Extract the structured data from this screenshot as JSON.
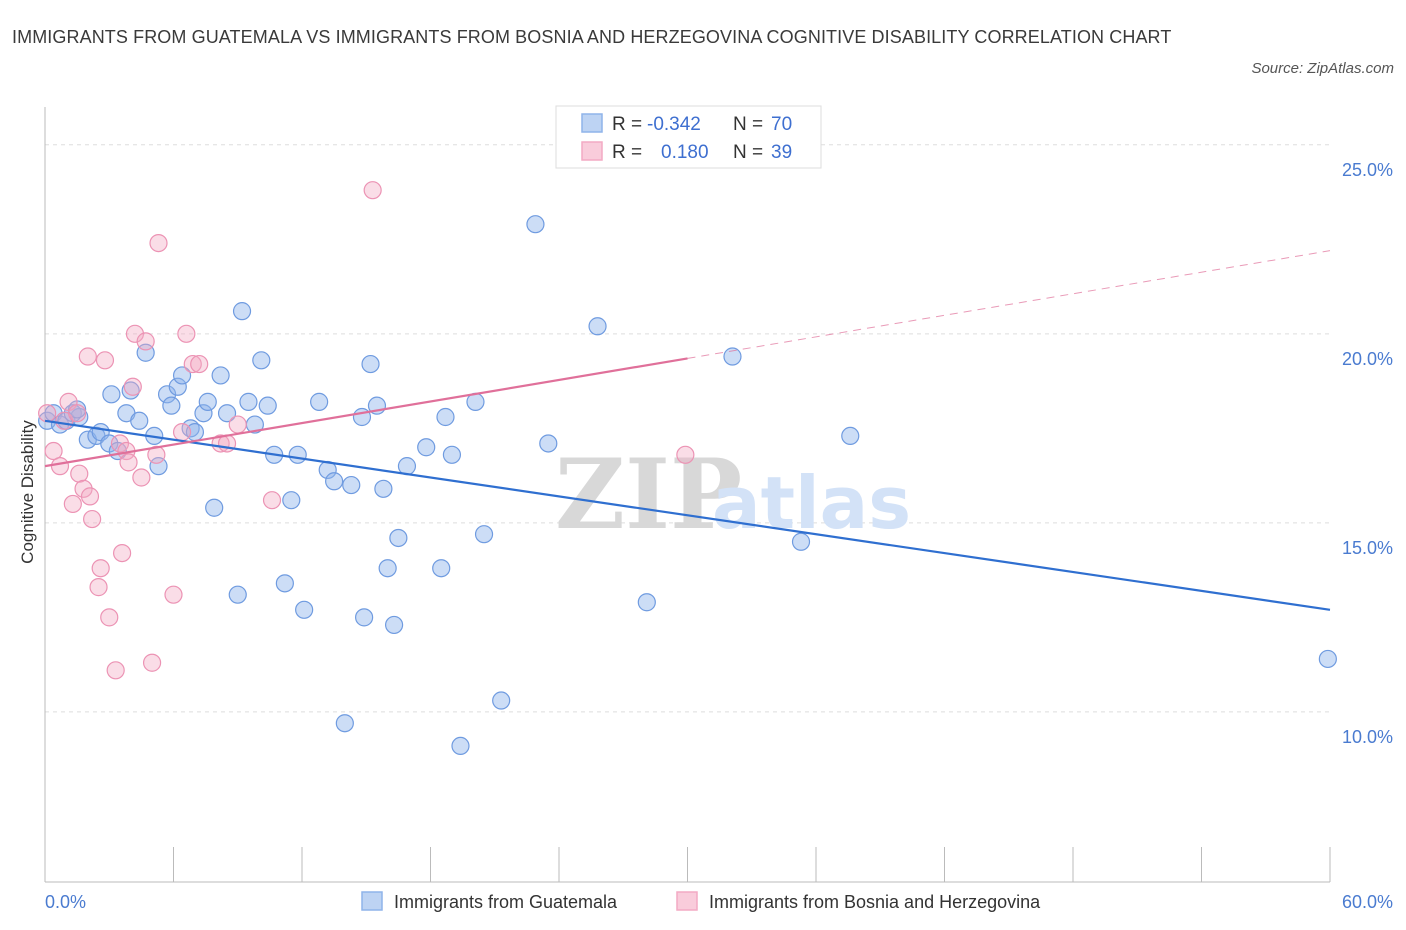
{
  "header": {
    "title": "IMMIGRANTS FROM GUATEMALA VS IMMIGRANTS FROM BOSNIA AND HERZEGOVINA COGNITIVE DISABILITY CORRELATION CHART",
    "source": "Source: ZipAtlas.com"
  },
  "watermark": {
    "zip": "ZIP",
    "atlas": "atlas"
  },
  "colors": {
    "blue": "#8fb4ea",
    "blue_line": "#2f6fd0",
    "pink": "#f3aac4",
    "pink_line": "#e0709a",
    "grid": "#dddddd",
    "tick_text": "#4a7bd0"
  },
  "legend": {
    "rows": [
      {
        "r_label": "R =",
        "r_value": "-0.342",
        "n_label": "N =",
        "n_value": "70"
      },
      {
        "r_label": "R =",
        "r_value": "0.180",
        "n_label": "N =",
        "n_value": "39"
      }
    ]
  },
  "bottom_legend": {
    "series1": "Immigrants from Guatemala",
    "series2": "Immigrants from Bosnia and Herzegovina"
  },
  "chart_data": {
    "type": "scatter",
    "title": "IMMIGRANTS FROM GUATEMALA VS IMMIGRANTS FROM BOSNIA AND HERZEGOVINA COGNITIVE DISABILITY CORRELATION CHART",
    "xlabel": "",
    "ylabel": "Cognitive Disability",
    "xlim": [
      0,
      60
    ],
    "ylim": [
      5.5,
      26
    ],
    "x_tick_labels": [
      {
        "value": 0,
        "label": "0.0%"
      },
      {
        "value": 60,
        "label": "60.0%"
      }
    ],
    "x_minor_ticks": [
      0,
      6,
      12,
      18,
      24,
      30,
      36,
      42,
      48,
      54,
      60
    ],
    "y_ticks": [
      {
        "value": 10,
        "label": "10.0%"
      },
      {
        "value": 15,
        "label": "15.0%"
      },
      {
        "value": 20,
        "label": "20.0%"
      },
      {
        "value": 25,
        "label": "25.0%"
      }
    ],
    "series": [
      {
        "name": "Immigrants from Guatemala",
        "color": "#8fb4ea",
        "R": -0.342,
        "N": 70,
        "trend": {
          "x": [
            0,
            60
          ],
          "y": [
            17.7,
            12.7
          ],
          "dashed_from": null
        },
        "points": [
          [
            0.1,
            17.7
          ],
          [
            0.4,
            17.9
          ],
          [
            0.7,
            17.6
          ],
          [
            1.0,
            17.7
          ],
          [
            1.3,
            17.9
          ],
          [
            1.6,
            17.8
          ],
          [
            1.5,
            18.0
          ],
          [
            2.0,
            17.2
          ],
          [
            2.4,
            17.3
          ],
          [
            2.6,
            17.4
          ],
          [
            3.0,
            17.1
          ],
          [
            3.4,
            16.9
          ],
          [
            3.1,
            18.4
          ],
          [
            3.8,
            17.9
          ],
          [
            4.0,
            18.5
          ],
          [
            4.4,
            17.7
          ],
          [
            4.7,
            19.5
          ],
          [
            5.1,
            17.3
          ],
          [
            5.3,
            16.5
          ],
          [
            5.7,
            18.4
          ],
          [
            5.9,
            18.1
          ],
          [
            6.2,
            18.6
          ],
          [
            6.4,
            18.9
          ],
          [
            6.8,
            17.5
          ],
          [
            7.0,
            17.4
          ],
          [
            7.4,
            17.9
          ],
          [
            7.6,
            18.2
          ],
          [
            7.9,
            15.4
          ],
          [
            8.2,
            18.9
          ],
          [
            8.5,
            17.9
          ],
          [
            9.0,
            13.1
          ],
          [
            9.2,
            20.6
          ],
          [
            9.5,
            18.2
          ],
          [
            9.8,
            17.6
          ],
          [
            10.1,
            19.3
          ],
          [
            10.4,
            18.1
          ],
          [
            10.7,
            16.8
          ],
          [
            11.2,
            13.4
          ],
          [
            11.5,
            15.6
          ],
          [
            11.8,
            16.8
          ],
          [
            12.1,
            12.7
          ],
          [
            12.8,
            18.2
          ],
          [
            13.2,
            16.4
          ],
          [
            13.5,
            16.1
          ],
          [
            14.8,
            17.8
          ],
          [
            14.9,
            12.5
          ],
          [
            15.2,
            19.2
          ],
          [
            15.5,
            18.1
          ],
          [
            14.3,
            16.0
          ],
          [
            15.8,
            15.9
          ],
          [
            16.3,
            12.3
          ],
          [
            16.5,
            14.6
          ],
          [
            16.0,
            13.8
          ],
          [
            16.9,
            16.5
          ],
          [
            17.8,
            17.0
          ],
          [
            18.5,
            13.8
          ],
          [
            18.7,
            17.8
          ],
          [
            19.0,
            16.8
          ],
          [
            19.4,
            9.1
          ],
          [
            20.1,
            18.2
          ],
          [
            20.5,
            14.7
          ],
          [
            21.3,
            10.3
          ],
          [
            14.0,
            9.7
          ],
          [
            22.9,
            22.9
          ],
          [
            23.5,
            17.1
          ],
          [
            25.8,
            20.2
          ],
          [
            28.1,
            12.9
          ],
          [
            32.1,
            19.4
          ],
          [
            35.3,
            14.5
          ],
          [
            37.6,
            17.3
          ],
          [
            59.9,
            11.4
          ]
        ]
      },
      {
        "name": "Immigrants from Bosnia and Herzegovina",
        "color": "#f3aac4",
        "R": 0.18,
        "N": 39,
        "trend": {
          "x": [
            0,
            60
          ],
          "y": [
            16.5,
            22.2
          ],
          "dashed_from": 30
        },
        "points": [
          [
            0.1,
            17.9
          ],
          [
            0.4,
            16.9
          ],
          [
            0.7,
            16.5
          ],
          [
            0.9,
            17.7
          ],
          [
            1.1,
            18.2
          ],
          [
            1.3,
            15.5
          ],
          [
            1.5,
            17.9
          ],
          [
            1.6,
            16.3
          ],
          [
            1.8,
            15.9
          ],
          [
            2.0,
            19.4
          ],
          [
            2.1,
            15.7
          ],
          [
            2.2,
            15.1
          ],
          [
            2.5,
            13.3
          ],
          [
            2.6,
            13.8
          ],
          [
            2.8,
            19.3
          ],
          [
            3.0,
            12.5
          ],
          [
            3.3,
            11.1
          ],
          [
            3.5,
            17.1
          ],
          [
            3.6,
            14.2
          ],
          [
            3.8,
            16.9
          ],
          [
            3.9,
            16.6
          ],
          [
            4.1,
            18.6
          ],
          [
            4.2,
            20.0
          ],
          [
            4.5,
            16.2
          ],
          [
            4.7,
            19.8
          ],
          [
            5.0,
            11.3
          ],
          [
            5.2,
            16.8
          ],
          [
            5.3,
            22.4
          ],
          [
            6.0,
            13.1
          ],
          [
            6.4,
            17.4
          ],
          [
            6.6,
            20.0
          ],
          [
            6.9,
            19.2
          ],
          [
            7.2,
            19.2
          ],
          [
            8.2,
            17.1
          ],
          [
            8.5,
            17.1
          ],
          [
            10.6,
            15.6
          ],
          [
            15.3,
            23.8
          ],
          [
            29.9,
            16.8
          ],
          [
            9.0,
            17.6
          ]
        ]
      }
    ]
  }
}
